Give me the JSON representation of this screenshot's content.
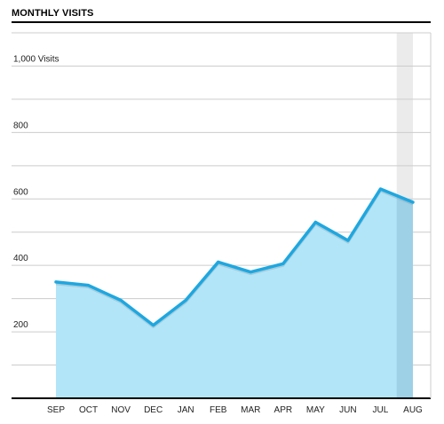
{
  "chart_data": {
    "type": "area",
    "title": "MONTHLY VISITS",
    "xlabel": "",
    "ylabel": "",
    "categories": [
      "SEP",
      "OCT",
      "NOV",
      "DEC",
      "JAN",
      "FEB",
      "MAR",
      "APR",
      "MAY",
      "JUN",
      "JUL",
      "AUG"
    ],
    "values": [
      350,
      340,
      295,
      220,
      295,
      410,
      380,
      405,
      530,
      475,
      630,
      590
    ],
    "ylim": [
      0,
      1100
    ],
    "y_ticks": [
      {
        "value": 1000,
        "label": "1,000 Visits"
      },
      {
        "value": 800,
        "label": "800"
      },
      {
        "value": 600,
        "label": "600"
      },
      {
        "value": 400,
        "label": "400"
      },
      {
        "value": 200,
        "label": "200"
      }
    ],
    "grid": true,
    "highlighted_category": "AUG",
    "colors": {
      "line": "#1ea7e0",
      "line_shadow": "#8a9ba6",
      "fill": "#b2e5f7",
      "highlight_fill": "#9ed0e6",
      "highlight_band": "#ebebeb",
      "grid": "#cccccc",
      "axis": "#000000"
    }
  }
}
